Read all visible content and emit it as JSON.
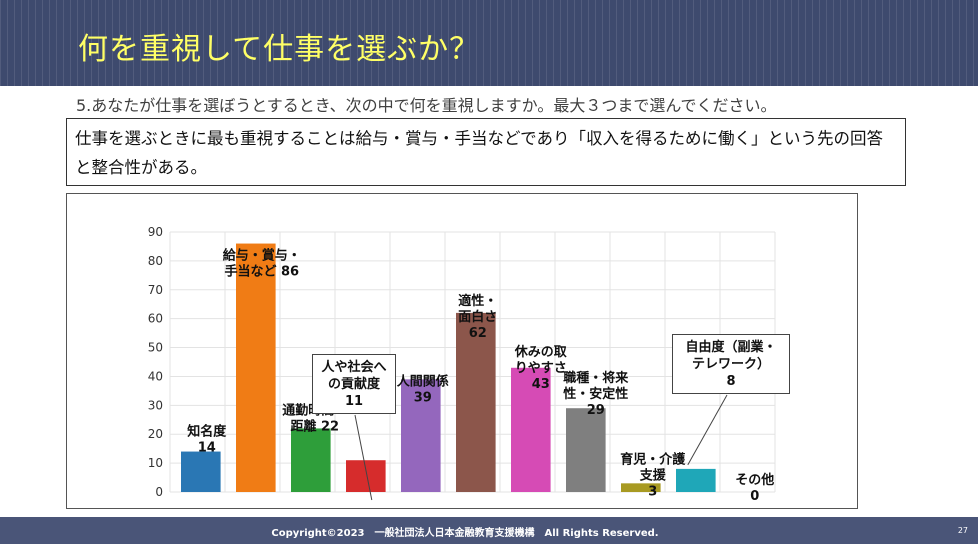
{
  "slide": {
    "title": "何を重視して仕事を選ぶか？",
    "question": "5.あなたが仕事を選ぼうとするとき、次の中で何を重視しますか。最大３つまで選んでください。",
    "note": "仕事を選ぶときに最も重視することは給与・賞与・手当などであり「収入を得るために働く」という先の回答と整合性がある。",
    "copyright": "Copyright©2023　一般社団法人日本金融教育支援機構　All Rights Reserved.",
    "page_number": "27"
  },
  "chart_data": {
    "type": "bar",
    "categories": [
      "知名度",
      "給与・賞与・手当など",
      "通勤時間・距離",
      "人や社会への貢献度",
      "人間関係",
      "適性・面白さ",
      "休みの取りやすさ",
      "職種・将来性・安定性",
      "育児・介護支援",
      "自由度（副業・テレワーク）",
      "その他"
    ],
    "values": [
      14,
      86,
      22,
      11,
      39,
      62,
      43,
      29,
      3,
      8,
      0
    ],
    "labels": [
      [
        "知名度",
        "14"
      ],
      [
        "給与・賞与・",
        "手当など 86"
      ],
      [
        "通勤時間・",
        "距離 22"
      ],
      [
        "人や社会へ",
        "の貢献度",
        "11"
      ],
      [
        "人間関係",
        "39"
      ],
      [
        "適性・",
        "面白さ",
        "62"
      ],
      [
        "休みの取",
        "りやすさ",
        "43"
      ],
      [
        "職種・将来",
        "性・安定性",
        "29"
      ],
      [
        "育児・介護",
        "支援",
        "3"
      ],
      [
        "自由度（副業・",
        "テレワーク）",
        "8"
      ],
      [
        "その他",
        "0"
      ]
    ],
    "colors": [
      "#2a77b4",
      "#f07c15",
      "#2e9e3a",
      "#d62c2c",
      "#9467bd",
      "#8c564b",
      "#d64bb5",
      "#7f7f7f",
      "#a89a22",
      "#1fa7b8",
      "#1fa7b8"
    ],
    "ylim": [
      0,
      90
    ],
    "yticks": [
      0,
      10,
      20,
      30,
      40,
      50,
      60,
      70,
      80,
      90
    ],
    "grid": true
  }
}
